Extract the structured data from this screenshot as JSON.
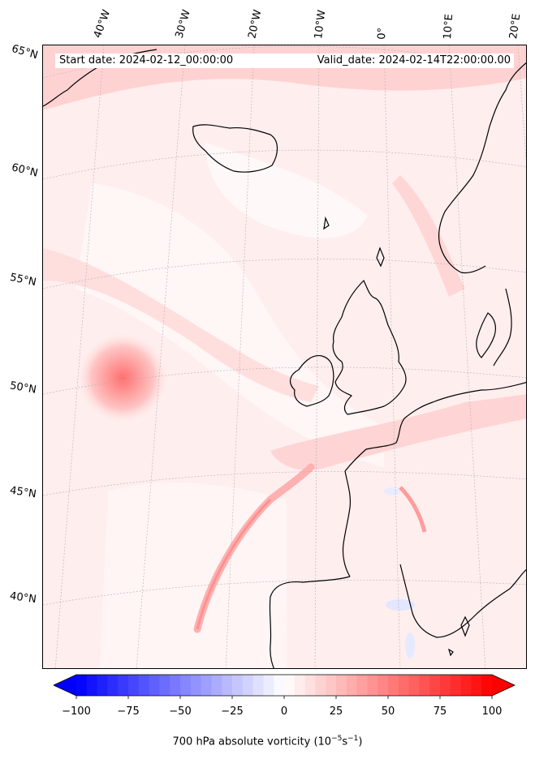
{
  "map": {
    "start_date": "Start date: 2024-02-12_00:00:00",
    "valid_date": "Valid_date: 2024-02-14T22:00:00.00",
    "lat_labels": [
      "65°N",
      "60°N",
      "55°N",
      "50°N",
      "45°N",
      "40°N"
    ],
    "lon_labels": [
      "40°W",
      "30°W",
      "20°W",
      "10°W",
      "0°",
      "10°E",
      "20°E"
    ]
  },
  "colorbar": {
    "label_prefix": "700 hPa absolute vorticity (10",
    "label_exp1": "−5",
    "label_mid": "s",
    "label_exp2": "−1",
    "label_suffix": ")",
    "ticks": [
      "−100",
      "−75",
      "−50",
      "−25",
      "0",
      "25",
      "50",
      "75",
      "100"
    ],
    "vmin": -100,
    "vmax": 100,
    "low_color": "#0000ff",
    "mid_color": "#ffffff",
    "high_color": "#ff0000"
  }
}
